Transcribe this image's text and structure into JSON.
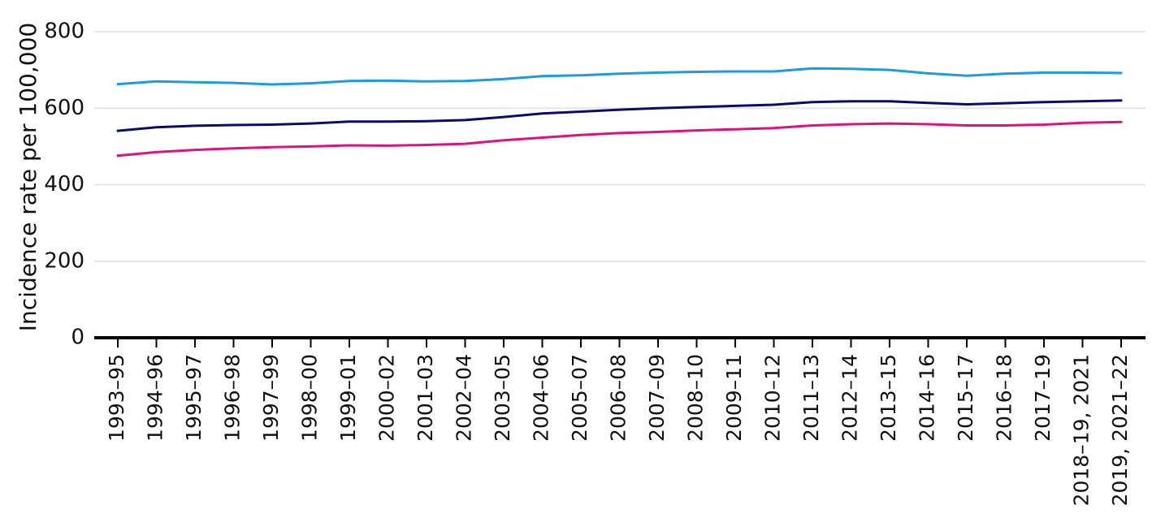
{
  "chart_data": {
    "type": "line",
    "title": "",
    "xlabel": "",
    "ylabel": "Incidence rate per 100,000",
    "ylim": [
      0,
      800
    ],
    "yticks": [
      0,
      200,
      400,
      600,
      800
    ],
    "grid": true,
    "legend": "none",
    "categories": [
      "1993–95",
      "1994–96",
      "1995–97",
      "1996–98",
      "1997–99",
      "1998–00",
      "1999–01",
      "2000–02",
      "2001–03",
      "2002–04",
      "2003–05",
      "2004–06",
      "2005–07",
      "2006–08",
      "2007–09",
      "2008–10",
      "2009–11",
      "2010–12",
      "2011–13",
      "2012–14",
      "2013–15",
      "2014–16",
      "2015–17",
      "2016–18",
      "2017–19",
      "2018–19, 2021",
      "2019, 2021–22"
    ],
    "series": [
      {
        "color": "#1a9de0",
        "values": [
          663,
          670,
          668,
          666,
          662,
          665,
          671,
          672,
          670,
          671,
          676,
          684,
          686,
          690,
          693,
          695,
          696,
          696,
          704,
          703,
          700,
          691,
          685,
          690,
          693,
          693,
          692
        ]
      },
      {
        "color": "#0b0b6e",
        "values": [
          541,
          550,
          554,
          556,
          557,
          560,
          565,
          565,
          566,
          569,
          577,
          586,
          591,
          596,
          600,
          603,
          606,
          609,
          616,
          618,
          618,
          614,
          610,
          613,
          616,
          618,
          620
        ]
      },
      {
        "color": "#e0117f",
        "values": [
          476,
          485,
          491,
          495,
          498,
          500,
          503,
          502,
          504,
          507,
          516,
          523,
          530,
          535,
          538,
          542,
          545,
          548,
          555,
          558,
          560,
          558,
          555,
          555,
          557,
          562,
          564
        ]
      }
    ]
  }
}
